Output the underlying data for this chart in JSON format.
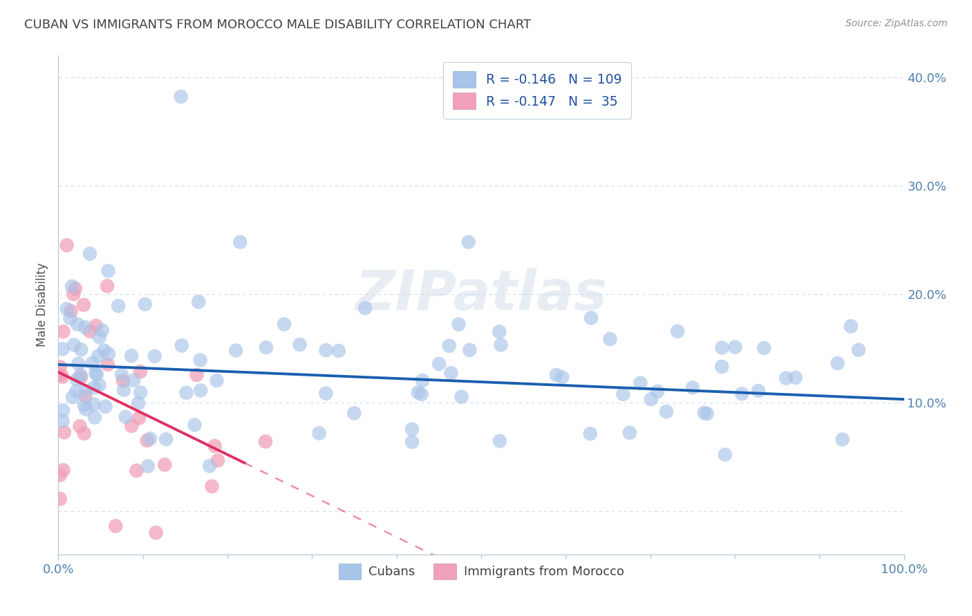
{
  "title": "CUBAN VS IMMIGRANTS FROM MOROCCO MALE DISABILITY CORRELATION CHART",
  "source": "Source: ZipAtlas.com",
  "ylabel": "Male Disability",
  "watermark": "ZIPatlas",
  "cubans": {
    "R": -0.146,
    "N": 109,
    "marker_color": "#a8c4e8",
    "line_color": "#1a5faf",
    "label": "Cubans"
  },
  "morocco": {
    "R": -0.147,
    "N": 35,
    "marker_color": "#f0a0b8",
    "line_color": "#e03060",
    "label": "Immigrants from Morocco"
  },
  "xlim": [
    0,
    1
  ],
  "ylim": [
    -0.04,
    0.42
  ],
  "yticks": [
    0.0,
    0.1,
    0.2,
    0.3,
    0.4
  ],
  "ytick_labels": [
    "",
    "10.0%",
    "20.0%",
    "30.0%",
    "40.0%"
  ],
  "xtick_labels": [
    "0.0%",
    "100.0%"
  ],
  "background_color": "#ffffff",
  "grid_color": "#c8d8e8",
  "title_color": "#404040",
  "axis_color": "#5080b0"
}
